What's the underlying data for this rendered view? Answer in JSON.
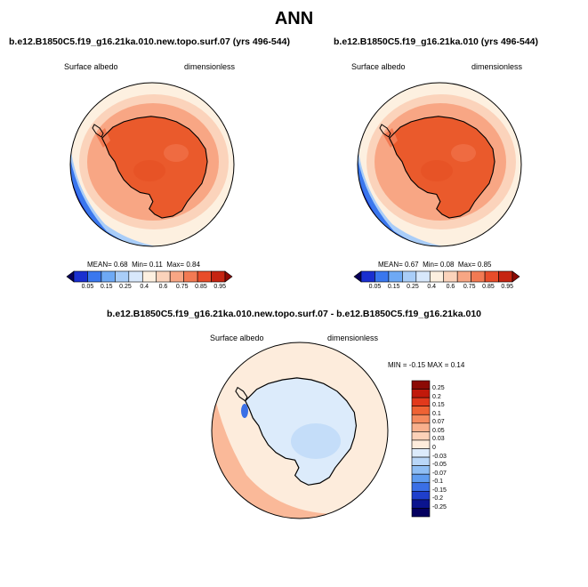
{
  "title": "ANN",
  "panels": [
    {
      "case": "b.e12.B1850C5.f19_g16.21ka.010.new.topo.surf.07 (yrs 496-544)",
      "variable": "Surface albedo",
      "units": "dimensionless",
      "stats": {
        "mean_label": "MEAN=",
        "mean": "0.68",
        "min_label": "Min=",
        "min": "0.11",
        "max_label": "Max=",
        "max": "0.84"
      }
    },
    {
      "case": "b.e12.B1850C5.f19_g16.21ka.010 (yrs 496-544)",
      "variable": "Surface albedo",
      "units": "dimensionless",
      "stats": {
        "mean_label": "MEAN=",
        "mean": "0.67",
        "min_label": "Min=",
        "min": "0.08",
        "max_label": "Max=",
        "max": "0.85"
      }
    }
  ],
  "diff": {
    "title": "b.e12.B1850C5.f19_g16.21ka.010.new.topo.surf.07 - b.e12.B1850C5.f19_g16.21ka.010",
    "variable": "Surface albedo",
    "units": "dimensionless",
    "minmax": "MIN = -0.15 MAX = 0.14"
  },
  "colorbar_levels": [
    "0.05",
    "0.15",
    "0.25",
    "0.4",
    "0.6",
    "0.75",
    "0.85",
    "0.95"
  ],
  "colorbar_colors": [
    "#08005a",
    "#1a2fd0",
    "#3a77ee",
    "#6ea9f5",
    "#a9cdf8",
    "#d8e8fb",
    "#fdf0e0",
    "#fbd3bb",
    "#f8a684",
    "#f27a53",
    "#e84d2a",
    "#c62512",
    "#8c0a05"
  ],
  "diff_levels": [
    "0.25",
    "0.2",
    "0.15",
    "0.1",
    "0.07",
    "0.05",
    "0.03",
    "0",
    "-0.03",
    "-0.05",
    "-0.07",
    "-0.1",
    "-0.15",
    "-0.2",
    "-0.25"
  ],
  "diff_colors": [
    "#8c0a05",
    "#c1190b",
    "#e2391c",
    "#ef6234",
    "#f58a5e",
    "#f9b08d",
    "#fcd1b8",
    "#fdecdc",
    "#dcebfb",
    "#b9d7f8",
    "#8fbef4",
    "#5f9cf0",
    "#3a6fe6",
    "#1f3fcc",
    "#0b148f",
    "#050060"
  ],
  "colors": {
    "ice": "#ea5a2c",
    "ice_dark": "#e3491e",
    "ice_light": "#f27a53",
    "ring1": "#f8a684",
    "ring2": "#fbd3bb",
    "ocean_light": "#fdf0e0",
    "blue_light": "#a9cdf8",
    "blue_mid": "#3a77ee",
    "blue_dark": "#1a2fd0",
    "diff_bg": "#fdecdc",
    "diff_warm": "#f9b08d",
    "diff_cool": "#dcebfb",
    "diff_cool2": "#b9d7f8"
  }
}
